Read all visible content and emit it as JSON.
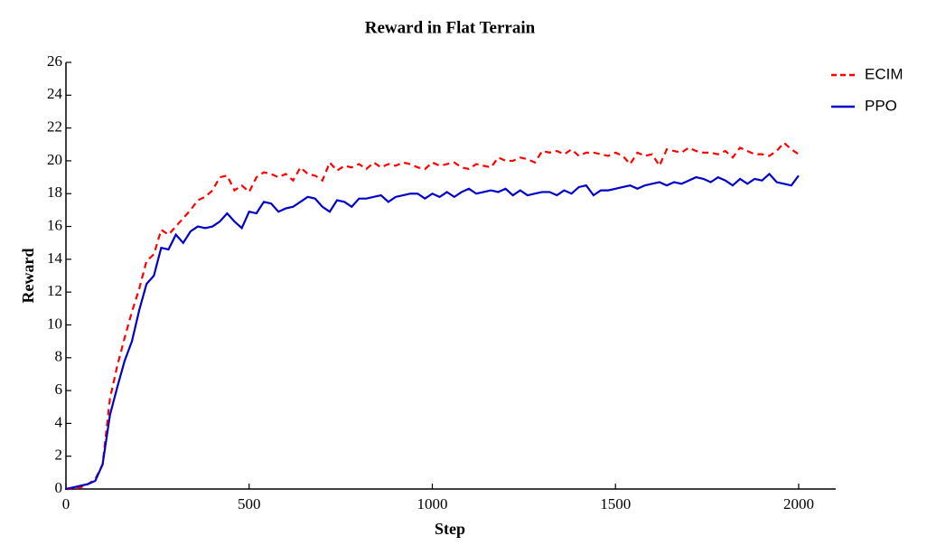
{
  "chart_data": {
    "type": "line",
    "title": "Reward in Flat Terrain",
    "x_label": "Step",
    "y_label": "Reward",
    "x": [
      0,
      20,
      40,
      60,
      80,
      100,
      120,
      140,
      160,
      180,
      200,
      220,
      240,
      260,
      280,
      300,
      320,
      340,
      360,
      380,
      400,
      420,
      440,
      460,
      480,
      500,
      520,
      540,
      560,
      580,
      600,
      620,
      640,
      660,
      680,
      700,
      720,
      740,
      760,
      780,
      800,
      820,
      840,
      860,
      880,
      900,
      920,
      940,
      960,
      980,
      1000,
      1020,
      1040,
      1060,
      1080,
      1100,
      1120,
      1140,
      1160,
      1180,
      1200,
      1220,
      1240,
      1260,
      1280,
      1300,
      1320,
      1340,
      1360,
      1380,
      1400,
      1420,
      1440,
      1460,
      1480,
      1500,
      1520,
      1540,
      1560,
      1580,
      1600,
      1620,
      1640,
      1660,
      1680,
      1700,
      1720,
      1740,
      1760,
      1780,
      1800,
      1820,
      1840,
      1860,
      1880,
      1900,
      1920,
      1940,
      1960,
      1980,
      2000
    ],
    "series": [
      {
        "name": "ECIM",
        "color": "#ff0000",
        "line_style": "dashed",
        "values": [
          0,
          0,
          0.1,
          0.3,
          0.6,
          1.5,
          5.5,
          7.5,
          9.2,
          10.8,
          12.2,
          13.9,
          14.3,
          15.8,
          15.5,
          16.0,
          16.5,
          17.0,
          17.6,
          17.8,
          18.2,
          19.0,
          19.1,
          18.2,
          18.5,
          18.1,
          19.0,
          19.3,
          19.2,
          19.0,
          19.2,
          18.8,
          19.6,
          19.2,
          19.1,
          18.8,
          19.9,
          19.4,
          19.7,
          19.6,
          19.8,
          19.5,
          19.9,
          19.6,
          19.8,
          19.7,
          19.9,
          19.8,
          19.6,
          19.5,
          19.9,
          19.7,
          19.8,
          19.9,
          19.6,
          19.5,
          19.8,
          19.7,
          19.6,
          20.2,
          20.0,
          20.0,
          20.2,
          20.1,
          19.9,
          20.6,
          20.5,
          20.6,
          20.4,
          20.7,
          20.3,
          20.5,
          20.5,
          20.4,
          20.3,
          20.5,
          20.3,
          19.8,
          20.5,
          20.3,
          20.4,
          19.7,
          20.7,
          20.6,
          20.5,
          20.8,
          20.6,
          20.5,
          20.5,
          20.4,
          20.6,
          20.2,
          20.8,
          20.6,
          20.4,
          20.4,
          20.3,
          20.6,
          21.1,
          20.7,
          20.4
        ]
      },
      {
        "name": "PPO",
        "color": "#0000c8",
        "line_style": "solid",
        "values": [
          0,
          0.1,
          0.2,
          0.3,
          0.5,
          1.5,
          4.5,
          6.2,
          7.8,
          9.0,
          10.9,
          12.5,
          13.0,
          14.7,
          14.6,
          15.5,
          15.0,
          15.7,
          16.0,
          15.9,
          16.0,
          16.3,
          16.8,
          16.3,
          15.9,
          16.9,
          16.8,
          17.5,
          17.4,
          16.9,
          17.1,
          17.2,
          17.5,
          17.8,
          17.7,
          17.2,
          16.9,
          17.6,
          17.5,
          17.2,
          17.7,
          17.7,
          17.8,
          17.9,
          17.5,
          17.8,
          17.9,
          18.0,
          18.0,
          17.7,
          18.0,
          17.8,
          18.1,
          17.8,
          18.1,
          18.3,
          18.0,
          18.1,
          18.2,
          18.1,
          18.3,
          17.9,
          18.2,
          17.9,
          18.0,
          18.1,
          18.1,
          17.9,
          18.2,
          18.0,
          18.4,
          18.5,
          17.9,
          18.2,
          18.2,
          18.3,
          18.4,
          18.5,
          18.3,
          18.5,
          18.6,
          18.7,
          18.5,
          18.7,
          18.6,
          18.8,
          19.0,
          18.9,
          18.7,
          19.0,
          18.8,
          18.5,
          18.9,
          18.6,
          18.9,
          18.8,
          19.2,
          18.7,
          18.6,
          18.5,
          19.1
        ]
      }
    ],
    "xlim": [
      0,
      2100
    ],
    "ylim": [
      0,
      26
    ],
    "xticks": [
      0,
      500,
      1000,
      1500,
      2000
    ],
    "yticks": [
      0,
      2,
      4,
      6,
      8,
      10,
      12,
      14,
      16,
      18,
      20,
      22,
      24,
      26
    ],
    "grid": false,
    "legend": "right"
  }
}
